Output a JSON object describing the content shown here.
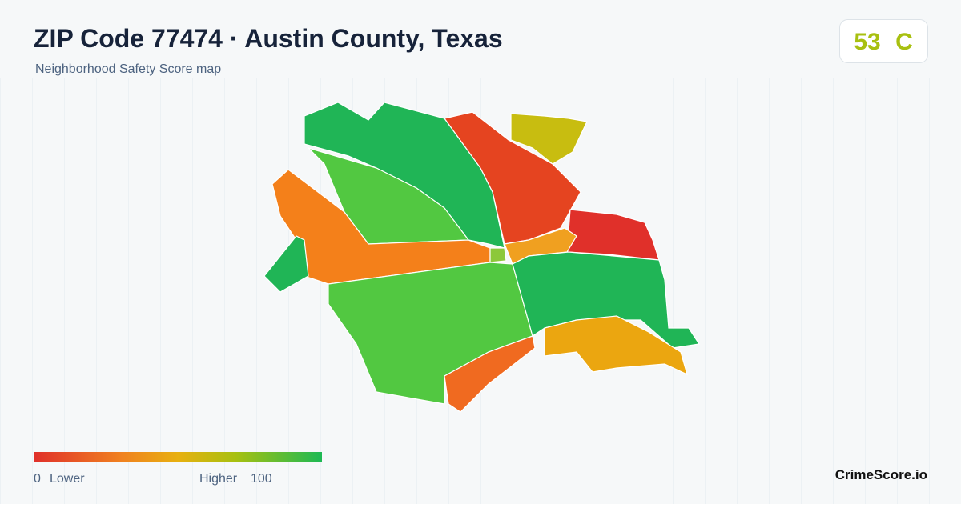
{
  "header": {
    "title": "ZIP Code 77474 · Austin County, Texas",
    "subtitle": "Neighborhood Safety Score map"
  },
  "score": {
    "value": 53,
    "grade": "C"
  },
  "legend": {
    "min": 0,
    "min_label": "Lower",
    "max_label": "Higher",
    "max": 100
  },
  "brand": "CrimeScore.io"
}
